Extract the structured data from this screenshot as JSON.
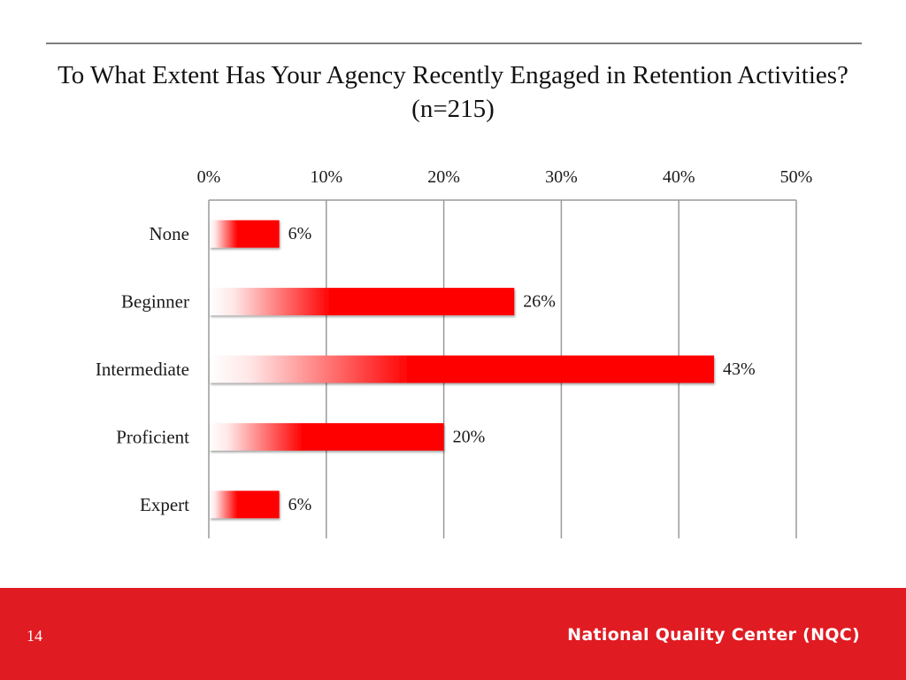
{
  "chart_data": {
    "type": "bar",
    "orientation": "horizontal",
    "title": "To What Extent Has Your Agency Recently Engaged in Retention Activities? (n=215)",
    "categories": [
      "None",
      "Beginner",
      "Intermediate",
      "Proficient",
      "Expert"
    ],
    "values": [
      6,
      26,
      43,
      20,
      6
    ],
    "data_labels": [
      "6%",
      "26%",
      "43%",
      "20%",
      "6%"
    ],
    "x_ticks": [
      "0%",
      "10%",
      "20%",
      "30%",
      "40%",
      "50%"
    ],
    "xlim": [
      0,
      50
    ],
    "x_axis_position": "top",
    "grid": true,
    "bar_color": "#ff0000"
  },
  "footer": {
    "page_number": "14",
    "organization": "National Quality Center (NQC)",
    "background_color": "#e11b22"
  }
}
